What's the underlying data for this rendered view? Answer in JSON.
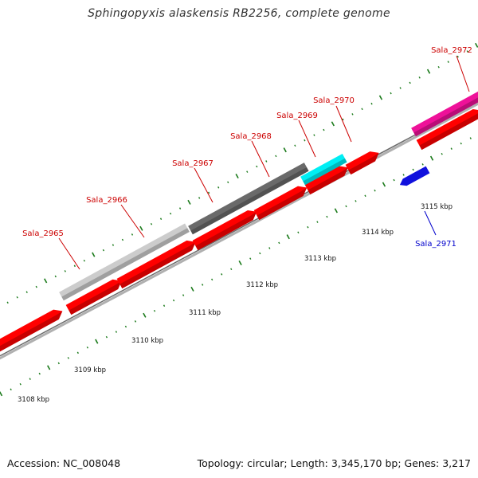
{
  "title": "Sphingopyxis alaskensis RB2256, complete genome",
  "footer": {
    "accession": "Accession: NC_008048",
    "summary": "Topology: circular; Length: 3,345,170 bp; Genes: 3,217"
  },
  "colors": {
    "forward_cds": "#ff0000",
    "reverse_cds": "#1010dd",
    "forward_label": "#cc0000",
    "reverse_label": "#0000cc",
    "tick": "#1a7a1a",
    "backbone": "#777777"
  },
  "kbp_ticks": [
    "3108 kbp",
    "3109 kbp",
    "3110 kbp",
    "3111 kbp",
    "3112 kbp",
    "3113 kbp",
    "3114 kbp",
    "3115 kbp"
  ],
  "genes": [
    {
      "name": "Sala_2965",
      "strand": "forward",
      "color": "#ff0000",
      "highlight": "#c8c8c8"
    },
    {
      "name": "Sala_2966",
      "strand": "forward",
      "color": "#ff0000",
      "highlight": "#c8c8c8"
    },
    {
      "name": "Sala_2967",
      "strand": "forward",
      "color": "#ff0000",
      "highlight": "#666666"
    },
    {
      "name": "Sala_2968",
      "strand": "forward",
      "color": "#ff0000",
      "highlight": "#666666"
    },
    {
      "name": "Sala_2969",
      "strand": "forward",
      "color": "#ff0000",
      "highlight": "#00e8f0"
    },
    {
      "name": "Sala_2970",
      "strand": "forward",
      "color": "#ff0000",
      "highlight": ""
    },
    {
      "name": "Sala_2971",
      "strand": "reverse",
      "color": "#1010dd",
      "highlight": ""
    },
    {
      "name": "Sala_2972",
      "strand": "forward",
      "color": "#ff0000",
      "highlight": "#ee1199"
    }
  ]
}
